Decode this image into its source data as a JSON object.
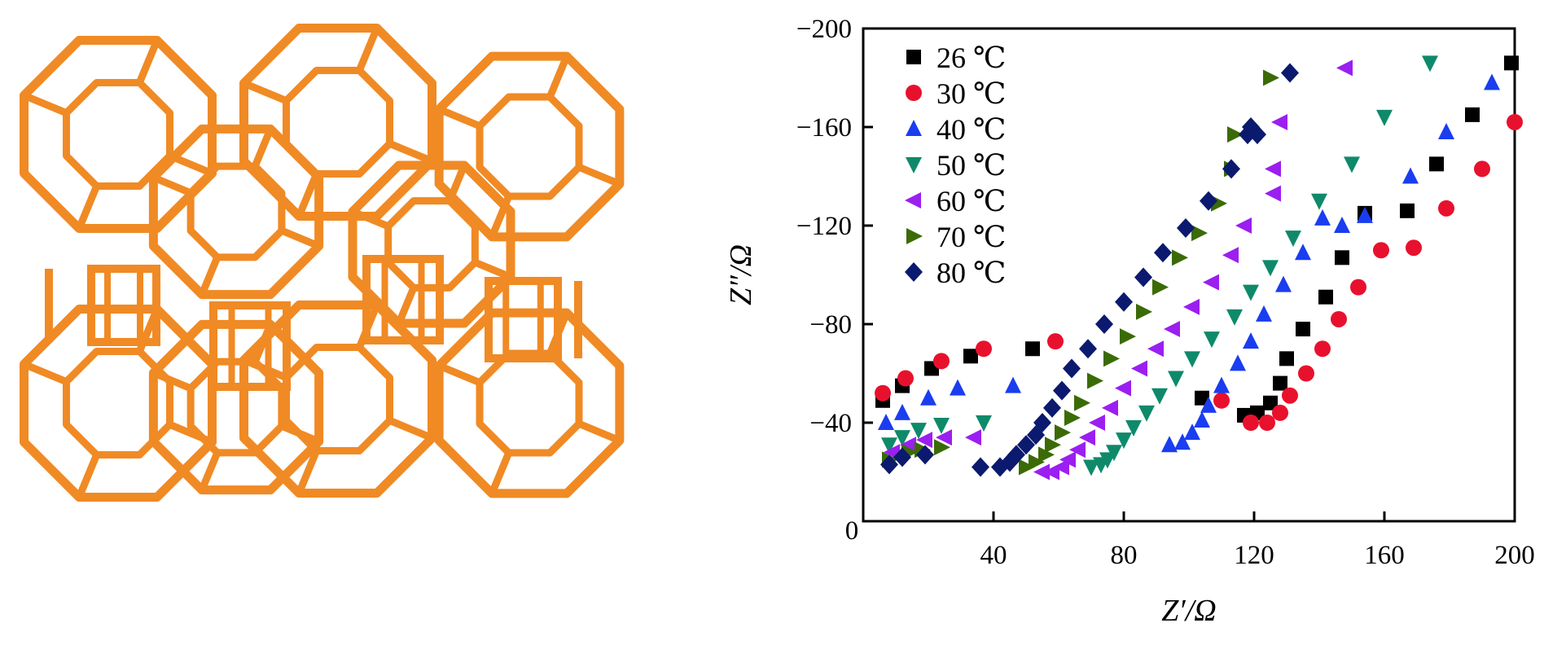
{
  "colors": {
    "framework": "#F08A24",
    "axis": "#000000"
  },
  "structure": {
    "icon": "zeolite-framework-icon",
    "description_hidden": true
  },
  "chart_data": {
    "type": "scatter",
    "xlabel": "Z′/Ω",
    "ylabel": "Z″/Ω",
    "xlim": [
      0,
      200
    ],
    "ylim": [
      0,
      -200
    ],
    "x_ticks": [
      "0",
      "40",
      "80",
      "120",
      "160",
      "200"
    ],
    "x_tick_values": [
      0,
      40,
      80,
      120,
      160,
      200
    ],
    "y_ticks": [
      "0",
      "−40",
      "−80",
      "−120",
      "−160",
      "−200"
    ],
    "y_tick_values": [
      0,
      -40,
      -80,
      -120,
      -160,
      -200
    ],
    "legend_position": "top-left",
    "series": [
      {
        "name": "26 ℃",
        "marker": "square",
        "color": "#000000",
        "points": [
          [
            6,
            -49
          ],
          [
            12,
            -55
          ],
          [
            21,
            -62
          ],
          [
            33,
            -67
          ],
          [
            52,
            -70
          ],
          [
            104,
            -50
          ],
          [
            117,
            -43
          ],
          [
            121,
            -44
          ],
          [
            125,
            -48
          ],
          [
            128,
            -56
          ],
          [
            130,
            -66
          ],
          [
            135,
            -78
          ],
          [
            142,
            -91
          ],
          [
            147,
            -107
          ],
          [
            154,
            -125
          ],
          [
            167,
            -126
          ],
          [
            176,
            -145
          ],
          [
            187,
            -165
          ],
          [
            199,
            -186
          ]
        ]
      },
      {
        "name": "30 ℃",
        "marker": "circle",
        "color": "#E8112D",
        "points": [
          [
            6,
            -52
          ],
          [
            13,
            -58
          ],
          [
            24,
            -65
          ],
          [
            37,
            -70
          ],
          [
            59,
            -73
          ],
          [
            110,
            -49
          ],
          [
            119,
            -40
          ],
          [
            124,
            -40
          ],
          [
            128,
            -44
          ],
          [
            131,
            -51
          ],
          [
            136,
            -60
          ],
          [
            141,
            -70
          ],
          [
            146,
            -82
          ],
          [
            152,
            -95
          ],
          [
            159,
            -110
          ],
          [
            169,
            -111
          ],
          [
            179,
            -127
          ],
          [
            190,
            -143
          ],
          [
            200,
            -162
          ]
        ]
      },
      {
        "name": "40 ℃",
        "marker": "triangle-up",
        "color": "#1A3DF0",
        "points": [
          [
            7,
            -40
          ],
          [
            12,
            -44
          ],
          [
            20,
            -50
          ],
          [
            29,
            -54
          ],
          [
            46,
            -55
          ],
          [
            94,
            -31
          ],
          [
            98,
            -32
          ],
          [
            101,
            -36
          ],
          [
            104,
            -41
          ],
          [
            106,
            -47
          ],
          [
            110,
            -55
          ],
          [
            115,
            -64
          ],
          [
            119,
            -73
          ],
          [
            123,
            -84
          ],
          [
            129,
            -96
          ],
          [
            135,
            -109
          ],
          [
            141,
            -123
          ],
          [
            147,
            -120
          ],
          [
            154,
            -124
          ],
          [
            168,
            -140
          ],
          [
            179,
            -158
          ],
          [
            193,
            -178
          ]
        ]
      },
      {
        "name": "50 ℃",
        "marker": "triangle-down",
        "color": "#0E8A6A",
        "points": [
          [
            8,
            -31
          ],
          [
            12,
            -34
          ],
          [
            17,
            -37
          ],
          [
            24,
            -39
          ],
          [
            37,
            -40
          ],
          [
            70,
            -22
          ],
          [
            73,
            -23
          ],
          [
            75,
            -25
          ],
          [
            77,
            -28
          ],
          [
            80,
            -33
          ],
          [
            83,
            -38
          ],
          [
            87,
            -44
          ],
          [
            91,
            -51
          ],
          [
            96,
            -58
          ],
          [
            101,
            -66
          ],
          [
            107,
            -74
          ],
          [
            114,
            -83
          ],
          [
            119,
            -93
          ],
          [
            125,
            -103
          ],
          [
            132,
            -115
          ],
          [
            140,
            -130
          ],
          [
            150,
            -145
          ],
          [
            160,
            -164
          ],
          [
            174,
            -186
          ]
        ]
      },
      {
        "name": "60 ℃",
        "marker": "triangle-left",
        "color": "#9B1FF0",
        "points": [
          [
            9,
            -28
          ],
          [
            14,
            -31
          ],
          [
            19,
            -33
          ],
          [
            25,
            -34
          ],
          [
            34,
            -34
          ],
          [
            55,
            -20
          ],
          [
            58,
            -20
          ],
          [
            61,
            -22
          ],
          [
            63,
            -25
          ],
          [
            66,
            -29
          ],
          [
            69,
            -34
          ],
          [
            72,
            -40
          ],
          [
            76,
            -46
          ],
          [
            80,
            -54
          ],
          [
            85,
            -62
          ],
          [
            90,
            -70
          ],
          [
            95,
            -78
          ],
          [
            101,
            -87
          ],
          [
            107,
            -97
          ],
          [
            113,
            -108
          ],
          [
            117,
            -120
          ],
          [
            126,
            -133
          ],
          [
            126,
            -143
          ],
          [
            128,
            -162
          ],
          [
            148,
            -184
          ]
        ]
      },
      {
        "name": "70 ℃",
        "marker": "triangle-right",
        "color": "#3B6B06",
        "points": [
          [
            8,
            -25
          ],
          [
            14,
            -28
          ],
          [
            18,
            -29
          ],
          [
            24,
            -30
          ],
          [
            50,
            -22
          ],
          [
            53,
            -24
          ],
          [
            56,
            -27
          ],
          [
            58,
            -31
          ],
          [
            61,
            -36
          ],
          [
            64,
            -42
          ],
          [
            67,
            -48
          ],
          [
            71,
            -57
          ],
          [
            76,
            -66
          ],
          [
            81,
            -75
          ],
          [
            86,
            -85
          ],
          [
            91,
            -95
          ],
          [
            97,
            -107
          ],
          [
            103,
            -117
          ],
          [
            109,
            -129
          ],
          [
            113,
            -143
          ],
          [
            114,
            -157
          ],
          [
            125,
            -180
          ]
        ]
      },
      {
        "name": "80 ℃",
        "marker": "diamond",
        "color": "#0B1A6E",
        "points": [
          [
            8,
            -23
          ],
          [
            12,
            -26
          ],
          [
            19,
            -27
          ],
          [
            36,
            -22
          ],
          [
            42,
            -22
          ],
          [
            45,
            -24
          ],
          [
            47,
            -27
          ],
          [
            50,
            -31
          ],
          [
            53,
            -35
          ],
          [
            55,
            -40
          ],
          [
            58,
            -46
          ],
          [
            61,
            -53
          ],
          [
            64,
            -62
          ],
          [
            69,
            -70
          ],
          [
            74,
            -80
          ],
          [
            80,
            -89
          ],
          [
            86,
            -99
          ],
          [
            92,
            -109
          ],
          [
            99,
            -119
          ],
          [
            106,
            -130
          ],
          [
            113,
            -143
          ],
          [
            118,
            -157
          ],
          [
            119,
            -160
          ],
          [
            121,
            -157
          ],
          [
            131,
            -182
          ]
        ]
      }
    ]
  }
}
